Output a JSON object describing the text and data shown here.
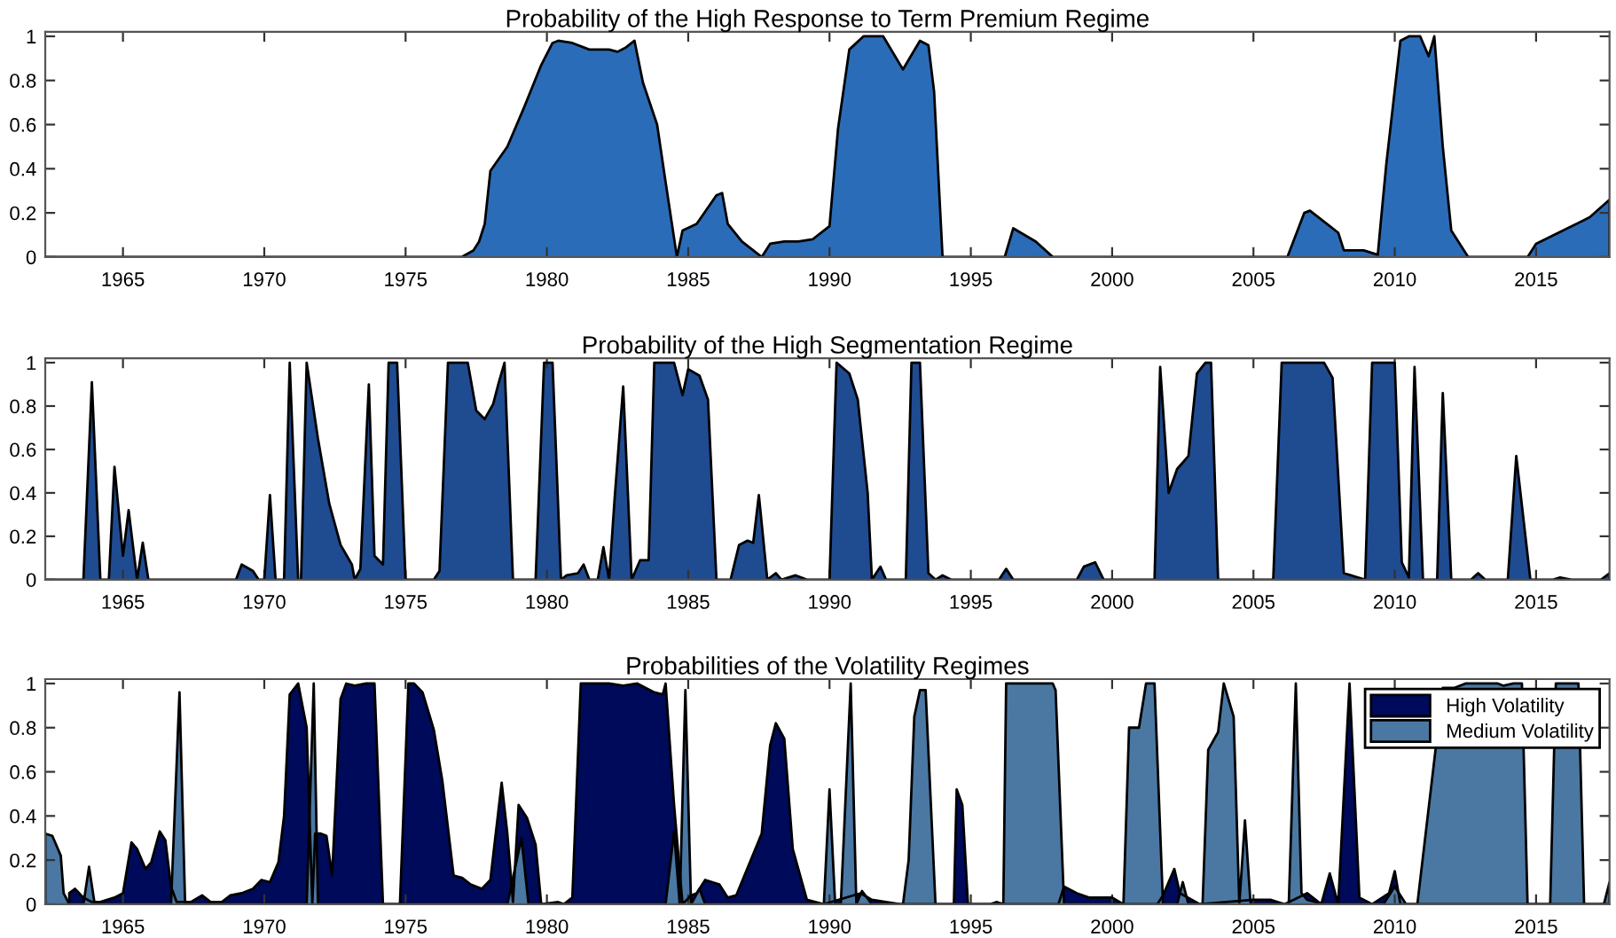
{
  "chart_data": [
    {
      "type": "area",
      "title": "Probability of the High Response to Term Premium Regime",
      "xlim": [
        1962.25,
        2017.6
      ],
      "ylim": [
        0,
        1.02
      ],
      "xticks": [
        1965,
        1970,
        1975,
        1980,
        1985,
        1990,
        1995,
        2000,
        2005,
        2010,
        2015
      ],
      "yticks": [
        0,
        0.2,
        0.4,
        0.6,
        0.8,
        1
      ],
      "grid": false,
      "legend": false,
      "series": [
        {
          "color": "#2b6cb8",
          "x": [
            1962.25,
            1976.98,
            1977.4,
            1977.6,
            1977.8,
            1978.0,
            1978.6,
            1979.2,
            1979.8,
            1980.2,
            1980.4,
            1980.9,
            1981.5,
            1982.2,
            1982.5,
            1982.8,
            1983.1,
            1983.4,
            1983.9,
            1984.2,
            1984.6,
            1984.8,
            1985.3,
            1986.0,
            1986.2,
            1986.4,
            1986.9,
            1987.6,
            1987.9,
            1988.4,
            1988.9,
            1989.4,
            1990.0,
            1990.3,
            1990.7,
            1991.2,
            1991.9,
            1992.6,
            1993.2,
            1993.5,
            1993.7,
            1994.0,
            1996.2,
            1996.5,
            1997.3,
            1997.9,
            2006.2,
            2006.8,
            2007.0,
            2008.0,
            2008.2,
            2008.9,
            2009.4,
            2009.5,
            2009.7,
            2010.2,
            2010.5,
            2010.9,
            2011.2,
            2011.4,
            2011.7,
            2012.0,
            2012.6,
            2014.7,
            2015.0,
            2016.9,
            2017.6
          ],
          "values": [
            0,
            0,
            0.03,
            0.07,
            0.15,
            0.39,
            0.5,
            0.68,
            0.87,
            0.97,
            0.98,
            0.97,
            0.94,
            0.94,
            0.93,
            0.95,
            0.98,
            0.79,
            0.6,
            0.34,
            0,
            0.12,
            0.15,
            0.28,
            0.29,
            0.15,
            0.07,
            0,
            0.06,
            0.07,
            0.07,
            0.08,
            0.14,
            0.58,
            0.94,
            1.0,
            1.0,
            0.85,
            0.98,
            0.96,
            0.75,
            0,
            0,
            0.13,
            0.07,
            0,
            0,
            0.2,
            0.21,
            0.11,
            0.03,
            0.03,
            0.01,
            0.15,
            0.42,
            0.98,
            1.0,
            1.0,
            0.91,
            1.0,
            0.5,
            0.12,
            0,
            0,
            0.06,
            0.18,
            0.26
          ]
        }
      ]
    },
    {
      "type": "area",
      "title": "Probability of the High Segmentation Regime",
      "xlim": [
        1962.25,
        2017.6
      ],
      "ylim": [
        0,
        1.02
      ],
      "xticks": [
        1965,
        1970,
        1975,
        1980,
        1985,
        1990,
        1995,
        2000,
        2005,
        2010,
        2015
      ],
      "yticks": [
        0,
        0.2,
        0.4,
        0.6,
        0.8,
        1
      ],
      "grid": false,
      "legend": false,
      "series": [
        {
          "color": "#1f4b91",
          "x": [
            1962.25,
            1963.6,
            1963.9,
            1964.2,
            1964.5,
            1964.7,
            1965.0,
            1965.2,
            1965.5,
            1965.7,
            1965.9,
            1969.0,
            1969.2,
            1969.6,
            1969.8,
            1970.0,
            1970.2,
            1970.4,
            1970.7,
            1970.9,
            1971.2,
            1971.3,
            1971.5,
            1971.9,
            1972.3,
            1972.7,
            1973.1,
            1973.2,
            1973.4,
            1973.7,
            1973.9,
            1974.2,
            1974.4,
            1974.7,
            1975.0,
            1976.0,
            1976.2,
            1976.5,
            1977.2,
            1977.5,
            1977.8,
            1978.1,
            1978.3,
            1978.5,
            1978.8,
            1979.6,
            1979.9,
            1980.2,
            1980.5,
            1980.7,
            1981.1,
            1981.3,
            1981.5,
            1981.8,
            1982.0,
            1982.2,
            1982.4,
            1982.7,
            1983.0,
            1983.3,
            1983.6,
            1983.8,
            1984.5,
            1984.8,
            1985.0,
            1985.4,
            1985.7,
            1986.0,
            1986.5,
            1986.8,
            1987.1,
            1987.3,
            1987.5,
            1987.8,
            1988.1,
            1988.3,
            1988.8,
            1989.2,
            1990.0,
            1990.25,
            1990.7,
            1991.0,
            1991.35,
            1991.5,
            1991.8,
            1992.0,
            1992.7,
            1992.9,
            1993.2,
            1993.5,
            1993.75,
            1994.0,
            1994.3,
            1996.0,
            1996.25,
            1996.5,
            1998.75,
            1999.0,
            1999.4,
            1999.7,
            2001.5,
            2001.7,
            2002.0,
            2002.3,
            2002.7,
            2003.0,
            2003.3,
            2003.5,
            2003.75,
            2005.7,
            2006.0,
            2007.5,
            2007.8,
            2008.2,
            2008.95,
            2009.2,
            2010.0,
            2010.25,
            2010.5,
            2010.7,
            2011.0,
            2011.5,
            2011.7,
            2012.0,
            2012.7,
            2012.95,
            2013.2,
            2014.0,
            2014.3,
            2014.8,
            2015.6,
            2015.85,
            2016.25,
            2017.3,
            2017.6
          ],
          "values": [
            0,
            0,
            0.91,
            0,
            0,
            0.52,
            0.11,
            0.32,
            0,
            0.17,
            0,
            0,
            0.07,
            0.04,
            0,
            0,
            0.39,
            0,
            0,
            1.0,
            0,
            0,
            1.0,
            0.65,
            0.35,
            0.16,
            0.07,
            0,
            0.05,
            0.9,
            0.11,
            0.07,
            1.0,
            1.0,
            0,
            0,
            0.04,
            1.0,
            1.0,
            0.78,
            0.74,
            0.81,
            0.91,
            1.0,
            0,
            0,
            1.0,
            1.0,
            0,
            0.02,
            0.03,
            0.07,
            0,
            0,
            0.15,
            0,
            0.38,
            0.89,
            0,
            0.09,
            0.09,
            1.0,
            1.0,
            0.85,
            0.97,
            0.94,
            0.83,
            0,
            0,
            0.16,
            0.18,
            0.17,
            0.39,
            0,
            0.03,
            0,
            0.02,
            0,
            0,
            1.0,
            0.95,
            0.83,
            0.4,
            0,
            0.06,
            0,
            0,
            1.0,
            1.0,
            0.03,
            0,
            0.02,
            0,
            0,
            0.05,
            0,
            0,
            0.06,
            0.08,
            0,
            0,
            0.98,
            0.4,
            0.51,
            0.57,
            0.95,
            1.0,
            1.0,
            0,
            0,
            1.0,
            1.0,
            0.93,
            0.03,
            0,
            1.0,
            1.0,
            0.08,
            0.01,
            0.98,
            0,
            0,
            0.86,
            0,
            0,
            0.03,
            0,
            0,
            0.57,
            0,
            0,
            0.01,
            0,
            0,
            0.03
          ]
        }
      ]
    },
    {
      "type": "area",
      "title": "Probabilities of the Volatility Regimes",
      "xlim": [
        1962.25,
        2017.6
      ],
      "ylim": [
        0,
        1.02
      ],
      "xticks": [
        1965,
        1970,
        1975,
        1980,
        1985,
        1990,
        1995,
        2000,
        2005,
        2010,
        2015
      ],
      "yticks": [
        0,
        0.2,
        0.4,
        0.6,
        0.8,
        1
      ],
      "grid": false,
      "legend": "top right",
      "series": [
        {
          "name": "High Volatility",
          "color": "#000a5a",
          "x": [
            1963.1,
            1963.3,
            1963.6,
            1963.9,
            1964.2,
            1964.7,
            1965.0,
            1965.3,
            1965.5,
            1965.8,
            1966.0,
            1966.3,
            1966.5,
            1966.7,
            1966.9,
            1967.4,
            1967.8,
            1968.1,
            1968.5,
            1968.8,
            1969.2,
            1969.6,
            1969.9,
            1970.2,
            1970.5,
            1970.7,
            1970.9,
            1971.2,
            1971.5,
            1971.7,
            1971.8,
            1972.0,
            1972.2,
            1972.4,
            1972.7,
            1972.9,
            1973.2,
            1973.6,
            1973.9,
            1974.2,
            1974.8,
            1975.1,
            1975.3,
            1975.6,
            1976.0,
            1976.3,
            1976.7,
            1977.0,
            1977.3,
            1977.7,
            1978.0,
            1978.4,
            1978.6,
            1978.8,
            1979.0,
            1979.3,
            1979.6,
            1979.8,
            1980.4,
            1980.6,
            1980.9,
            1981.2,
            1982.2,
            1982.7,
            1983.2,
            1983.8,
            1984.1,
            1984.2,
            1984.5,
            1984.8,
            1985.1,
            1985.3,
            1985.6,
            1986.1,
            1986.4,
            1986.7,
            1987.6,
            1987.9,
            1988.1,
            1988.4,
            1988.7,
            1989.2,
            1989.8,
            1991.1,
            1991.5,
            1992.5,
            1994.4,
            1994.5,
            1994.7,
            1994.9,
            1998.1,
            1998.3,
            1998.75,
            1999.2,
            2000.0,
            2000.4,
            2001.6,
            2001.8,
            2002.2,
            2002.4,
            2003.1,
            2005.0,
            2005.6,
            2006.1,
            2006.9,
            2007.4,
            2007.7,
            2008.0,
            2008.4,
            2008.75,
            2009.2,
            2009.8,
            2010.0,
            2010.2,
            2017.6
          ],
          "values": [
            0.05,
            0.07,
            0.03,
            0.01,
            0.01,
            0.03,
            0.05,
            0.28,
            0.25,
            0.16,
            0.19,
            0.33,
            0.29,
            0.08,
            0.01,
            0.01,
            0.04,
            0.01,
            0.01,
            0.04,
            0.05,
            0.07,
            0.11,
            0.1,
            0.19,
            0.4,
            0.95,
            1.0,
            0.8,
            0,
            0.32,
            0.32,
            0.31,
            0.13,
            0.93,
            1.0,
            0.99,
            1.0,
            1.0,
            0,
            0,
            1.0,
            1.0,
            0.96,
            0.79,
            0.56,
            0.13,
            0.12,
            0.09,
            0.07,
            0.11,
            0.55,
            0.32,
            0.01,
            0.45,
            0.39,
            0.27,
            0,
            0.01,
            0,
            0.03,
            1.0,
            1.0,
            0.99,
            1.0,
            0.96,
            0.95,
            1.0,
            0.45,
            0,
            0.04,
            0.05,
            0.11,
            0.09,
            0.03,
            0.04,
            0.32,
            0.72,
            0.82,
            0.75,
            0.25,
            0.02,
            0,
            0.05,
            0.02,
            0,
            0,
            0.52,
            0.45,
            0,
            0,
            0.08,
            0.05,
            0.03,
            0.03,
            0,
            0,
            0.04,
            0.16,
            0.05,
            0,
            0.02,
            0.02,
            0,
            0.05,
            0,
            0.14,
            0,
            1.0,
            0.03,
            0,
            0.05,
            0.15,
            0,
            0
          ]
        },
        {
          "name": "Medium Volatility",
          "color": "#4a78a3",
          "x": [
            1962.25,
            1962.5,
            1962.8,
            1962.9,
            1963.1,
            1963.6,
            1963.8,
            1964.0,
            1966.7,
            1967.0,
            1967.2,
            1971.5,
            1971.75,
            1971.9,
            1978.6,
            1979.1,
            1979.35,
            1984.2,
            1984.5,
            1984.7,
            1984.9,
            1985.1,
            1985.4,
            1985.6,
            1989.8,
            1990.0,
            1990.2,
            1990.4,
            1990.75,
            1990.95,
            1991.15,
            1991.5,
            1992.6,
            1992.8,
            1993.0,
            1993.2,
            1993.4,
            1993.75,
            1995.7,
            1995.9,
            1996.15,
            1996.25,
            1997.9,
            1998.0,
            1998.3,
            2000.4,
            2000.6,
            2000.95,
            2001.2,
            2001.5,
            2001.8,
            2002.3,
            2002.5,
            2002.7,
            2003.2,
            2003.4,
            2003.75,
            2003.95,
            2004.3,
            2004.5,
            2004.7,
            2004.9,
            2006.25,
            2006.5,
            2006.7,
            2006.9,
            2007.5,
            2009.6,
            2010.0,
            2010.2,
            2010.4,
            2010.8,
            2011.25,
            2011.7,
            2012.1,
            2012.5,
            2012.8,
            2012.9,
            2013.2,
            2013.65,
            2013.85,
            2014.2,
            2014.5,
            2014.7,
            2015.5,
            2015.7,
            2016.5,
            2016.7,
            2017.4,
            2017.6
          ],
          "values": [
            0.32,
            0.31,
            0.22,
            0.05,
            0,
            0,
            0.17,
            0,
            0,
            0.96,
            0,
            0,
            1.0,
            0,
            0,
            0.3,
            0,
            0,
            0.33,
            0,
            0.97,
            0,
            0.07,
            0,
            0,
            0.52,
            0,
            0,
            1.0,
            0,
            0.06,
            0,
            0,
            0.2,
            0.85,
            0.97,
            0.97,
            0,
            0,
            0.01,
            0,
            1.0,
            1.0,
            0.97,
            0,
            0,
            0.8,
            0.8,
            1.0,
            1.0,
            0,
            0,
            0.1,
            0,
            0,
            0.7,
            0.78,
            1.0,
            0.85,
            0,
            0.38,
            0,
            0,
            1.0,
            0.05,
            0.02,
            0,
            0,
            0.08,
            null,
            0,
            0,
            null,
            0.98,
            0.98,
            1.0,
            1.0,
            null,
            1.0,
            1.0,
            0.99,
            1.0,
            1.0,
            0,
            0,
            1.0,
            1.0,
            0,
            0,
            0.1
          ]
        }
      ]
    }
  ]
}
